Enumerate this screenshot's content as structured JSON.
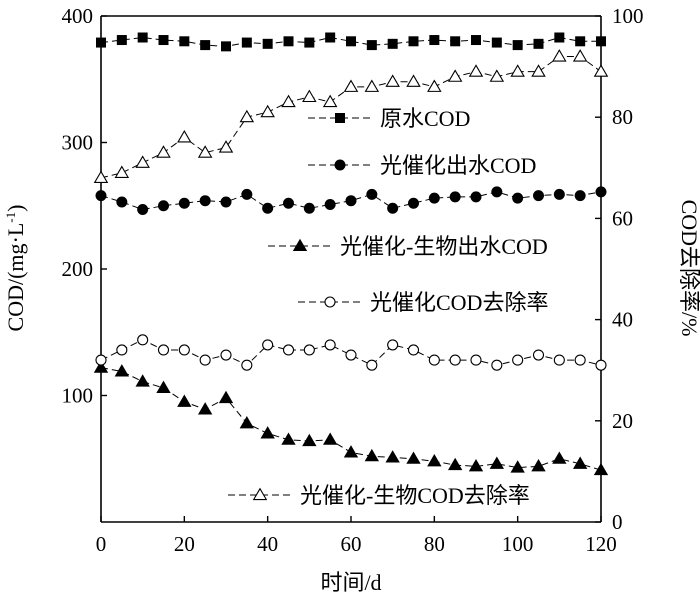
{
  "chart_data": {
    "type": "line",
    "xlabel": "时间/d",
    "ylabel": "COD/(mg·L",
    "ylabel_sup": "-1",
    "ylabel_close": ")",
    "y2label": "COD去除率/%",
    "xlim": [
      0,
      120
    ],
    "ylim": [
      0,
      400
    ],
    "y2lim": [
      0,
      100
    ],
    "x_ticks": [
      "0",
      "20",
      "40",
      "60",
      "80",
      "100",
      "120"
    ],
    "y_ticks": [
      "400",
      "300",
      "200",
      "100"
    ],
    "y2_ticks": [
      "100",
      "80",
      "60",
      "40",
      "20",
      "0"
    ],
    "grid": false,
    "legend_position": "inside-right",
    "x": [
      0,
      5,
      10,
      15,
      20,
      25,
      30,
      35,
      40,
      45,
      50,
      55,
      60,
      65,
      70,
      75,
      80,
      85,
      90,
      95,
      100,
      105,
      110,
      115,
      120
    ],
    "series": [
      {
        "name": "原水COD",
        "axis": "left",
        "marker": "filled-square",
        "values": [
          379,
          381,
          383,
          381,
          380,
          377,
          376,
          379,
          378,
          380,
          379,
          383,
          380,
          377,
          378,
          380,
          381,
          380,
          381,
          379,
          377,
          378,
          383,
          380,
          380
        ]
      },
      {
        "name": "光催化出水COD",
        "axis": "left",
        "marker": "filled-circle",
        "values": [
          258,
          253,
          247,
          250,
          252,
          254,
          253,
          259,
          248,
          252,
          248,
          251,
          254,
          259,
          248,
          252,
          256,
          257,
          257,
          261,
          256,
          258,
          259,
          258,
          261
        ]
      },
      {
        "name": "光催化-生物出水COD",
        "axis": "left",
        "marker": "filled-triangle",
        "values": [
          122,
          119,
          111,
          106,
          95,
          89,
          98,
          78,
          70,
          65,
          64,
          65,
          55,
          52,
          51,
          50,
          48,
          45,
          44,
          46,
          43,
          44,
          50,
          46,
          41
        ]
      },
      {
        "name": "光催化COD去除率",
        "axis": "right",
        "marker": "open-circle",
        "values": [
          32,
          34,
          36,
          34,
          34,
          32,
          33,
          31,
          35,
          34,
          34,
          35,
          33,
          31,
          35,
          34,
          32,
          32,
          32,
          31,
          32,
          33,
          32,
          32,
          31
        ]
      },
      {
        "name": "光催化-生物COD去除率",
        "axis": "right",
        "marker": "open-triangle",
        "values": [
          68,
          69,
          71,
          73,
          76,
          73,
          74,
          80,
          81,
          83,
          84,
          83,
          86,
          86,
          87,
          87,
          86,
          88,
          89,
          88,
          89,
          89,
          92,
          92,
          89
        ]
      }
    ]
  }
}
